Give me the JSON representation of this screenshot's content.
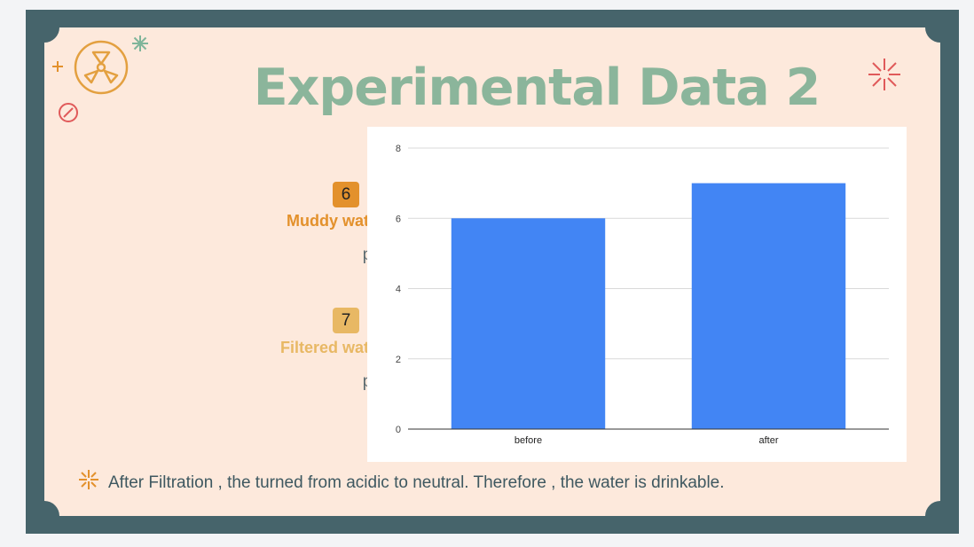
{
  "slide": {
    "title": "Experimental Data 2",
    "footer": "After Filtration , the turned from acidic to neutral. Therefore , the water is drinkable."
  },
  "readings": [
    {
      "value": "6",
      "label": "Muddy water",
      "unit": "pH",
      "color": "#e3912c"
    },
    {
      "value": "7",
      "label": "Filtered water",
      "unit": "pH",
      "color": "#e8b864"
    }
  ],
  "icons": {
    "hazard": "radiation-icon",
    "plus": "plus-icon",
    "asterisk_top": "asterisk-icon",
    "no_sign": "no-entry-icon",
    "burst": "burst-icon",
    "bullet": "sparkle-bullet-icon"
  },
  "colors": {
    "frame": "#46646b",
    "panel": "#fde9dc",
    "title": "#8bb59b",
    "bar": "#4285f4"
  },
  "chart_data": {
    "type": "bar",
    "categories": [
      "before",
      "after"
    ],
    "values": [
      6,
      7
    ],
    "ylim": [
      0,
      8
    ],
    "yticks": [
      0,
      2,
      4,
      6,
      8
    ],
    "grid": true,
    "legend": "none"
  }
}
